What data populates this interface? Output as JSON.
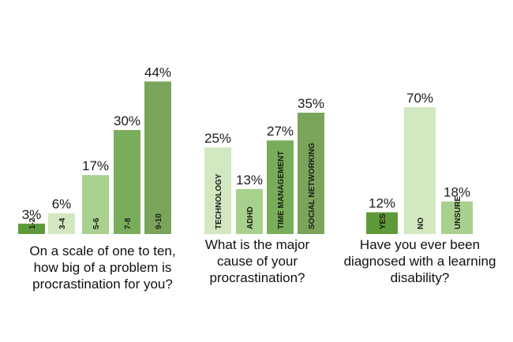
{
  "chart_data": [
    {
      "type": "bar",
      "title": "On a scale of one to ten, how big of a problem is procrastination for you?",
      "categories": [
        "1-2",
        "3-4",
        "5-6",
        "7-8",
        "9-10"
      ],
      "values": [
        3,
        6,
        17,
        30,
        44
      ],
      "value_labels": [
        "3%",
        "6%",
        "17%",
        "30%",
        "44%"
      ],
      "colors": [
        "#5f9a3a",
        "#d2e8c0",
        "#a8d18d",
        "#78ae5a",
        "#7aa45a"
      ],
      "ylim": [
        0,
        100
      ]
    },
    {
      "type": "bar",
      "title": "What is the major cause of your procrastination?",
      "categories": [
        "TECHNOLOGY",
        "ADHD",
        "TIME MANAGEMENT",
        "SOCIAL NETWORKING"
      ],
      "values": [
        25,
        13,
        27,
        35
      ],
      "value_labels": [
        "25%",
        "13%",
        "27%",
        "35%"
      ],
      "colors": [
        "#d2e8c0",
        "#a8d18d",
        "#78ae5a",
        "#7aa45a"
      ],
      "ylim": [
        0,
        100
      ]
    },
    {
      "type": "bar",
      "title": "Have you ever been diagnosed with a learning disability?",
      "categories": [
        "YES",
        "NO",
        "UNSURE"
      ],
      "values": [
        12,
        70,
        18
      ],
      "value_labels": [
        "12%",
        "70%",
        "18%"
      ],
      "colors": [
        "#5f9a3a",
        "#d2e8c0",
        "#a8d18d"
      ],
      "ylim": [
        0,
        100
      ]
    }
  ]
}
